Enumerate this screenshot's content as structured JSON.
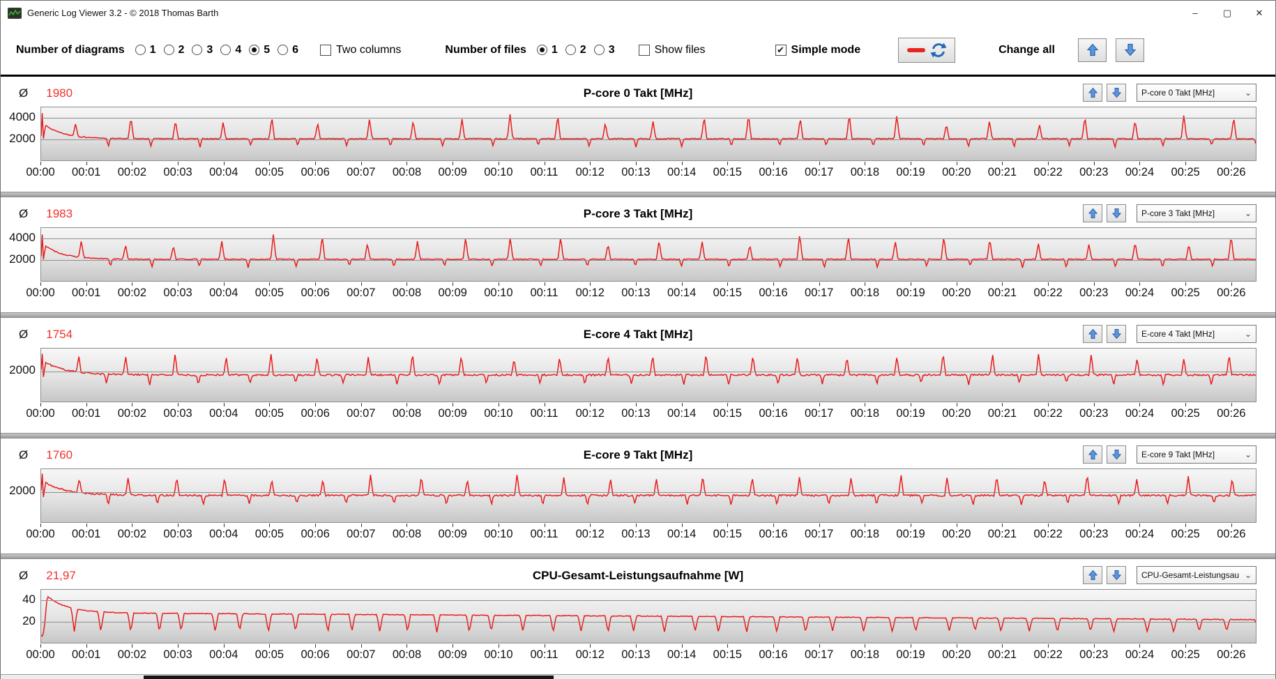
{
  "window": {
    "title": "Generic Log Viewer 3.2 - © 2018 Thomas Barth",
    "controls": {
      "minimize": "–",
      "maximize": "▢",
      "close": "✕"
    }
  },
  "toolbar": {
    "diagrams": {
      "label": "Number of diagrams",
      "options": [
        "1",
        "2",
        "3",
        "4",
        "5",
        "6"
      ],
      "selected": "5"
    },
    "two_columns": {
      "label": "Two columns",
      "checked": false
    },
    "files": {
      "label": "Number of files",
      "options": [
        "1",
        "2",
        "3"
      ],
      "selected": "1"
    },
    "show_files": {
      "label": "Show files",
      "checked": false
    },
    "simple_mode": {
      "label": "Simple mode",
      "checked": true
    },
    "change_all": {
      "label": "Change all"
    },
    "check_glyph": "✔",
    "dropdown_chevron": "⌄"
  },
  "colors": {
    "line_red": "#e81a1a",
    "avg_red": "#f2312a",
    "arrow_blue_fill": "#5b97dd",
    "arrow_blue_stroke": "#2b5fa8",
    "refresh_blue": "#1f66bb",
    "dash_red": "#e8251d",
    "gridline": "#8f8f8f"
  },
  "time_axis": {
    "tick_labels": [
      "00:00",
      "00:01",
      "00:02",
      "00:03",
      "00:04",
      "00:05",
      "00:06",
      "00:07",
      "00:08",
      "00:09",
      "00:10",
      "00:11",
      "00:12",
      "00:13",
      "00:14",
      "00:15",
      "00:16",
      "00:17",
      "00:18",
      "00:19",
      "00:20",
      "00:21",
      "00:22",
      "00:23",
      "00:24",
      "00:25",
      "00:26"
    ],
    "seconds_span": 1593
  },
  "panels": [
    {
      "avg_symbol": "Ø",
      "avg": "1980",
      "title": "P-core 0 Takt [MHz]",
      "dropdown": "P-core 0 Takt [MHz]",
      "type": "line",
      "ylim": [
        0,
        5000
      ],
      "yticks": [
        {
          "label": "4000",
          "value": 4000
        },
        {
          "label": "2000",
          "value": 2000
        }
      ],
      "waveform": {
        "seed": 7,
        "baseline": 2040,
        "noise": 42,
        "intro": [
          [
            0,
            2300
          ],
          [
            1.5,
            4450
          ],
          [
            3.5,
            1250
          ],
          [
            5,
            3500
          ]
        ],
        "decay_from": 3350,
        "decay_tau": 24,
        "decay_start": 5,
        "spike_start": 50,
        "spike_period": 63,
        "spike_min": 3400,
        "spike_max": 4400,
        "spike_width": 3.5,
        "dip_start": 84,
        "dip_period": 63,
        "dip_value": 1290,
        "dip_width": 2.6
      }
    },
    {
      "avg_symbol": "Ø",
      "avg": "1983",
      "title": "P-core 3 Takt [MHz]",
      "dropdown": "P-core 3 Takt [MHz]",
      "type": "line",
      "ylim": [
        0,
        5000
      ],
      "yticks": [
        {
          "label": "4000",
          "value": 4000
        },
        {
          "label": "2000",
          "value": 2000
        }
      ],
      "waveform": {
        "seed": 13,
        "baseline": 2045,
        "noise": 42,
        "intro": [
          [
            0,
            2300
          ],
          [
            1.5,
            4380
          ],
          [
            3.5,
            1260
          ],
          [
            5,
            3450
          ]
        ],
        "decay_from": 3350,
        "decay_tau": 24,
        "decay_start": 5,
        "spike_start": 52,
        "spike_period": 63,
        "spike_min": 3350,
        "spike_max": 4600,
        "spike_width": 3.5,
        "dip_start": 86,
        "dip_period": 63,
        "dip_value": 1300,
        "dip_width": 2.6
      }
    },
    {
      "avg_symbol": "Ø",
      "avg": "1754",
      "title": "E-core 4 Takt [MHz]",
      "dropdown": "E-core 4 Takt [MHz]",
      "type": "line",
      "ylim": [
        0,
        3500
      ],
      "yticks": [
        {
          "label": "2000",
          "value": 2000
        }
      ],
      "waveform": {
        "seed": 21,
        "baseline": 1755,
        "noise": 58,
        "intro": [
          [
            0,
            2100
          ],
          [
            1.5,
            3150
          ],
          [
            3.5,
            1120
          ],
          [
            5,
            2600
          ]
        ],
        "decay_from": 2600,
        "decay_tau": 30,
        "decay_start": 5,
        "spike_start": 50,
        "spike_period": 63,
        "spike_min": 2850,
        "spike_max": 3250,
        "spike_width": 3.2,
        "dip_start": 84,
        "dip_period": 63,
        "dip_value": 1130,
        "dip_width": 2.6
      }
    },
    {
      "avg_symbol": "Ø",
      "avg": "1760",
      "title": "E-core 9 Takt [MHz]",
      "dropdown": "E-core 9 Takt [MHz]",
      "type": "line",
      "ylim": [
        0,
        3500
      ],
      "yticks": [
        {
          "label": "2000",
          "value": 2000
        }
      ],
      "waveform": {
        "seed": 29,
        "baseline": 1765,
        "noise": 58,
        "intro": [
          [
            0,
            2100
          ],
          [
            1.5,
            3200
          ],
          [
            3.5,
            1150
          ],
          [
            5,
            2620
          ]
        ],
        "decay_from": 2620,
        "decay_tau": 30,
        "decay_start": 5,
        "spike_start": 53,
        "spike_period": 63,
        "spike_min": 2850,
        "spike_max": 3300,
        "spike_width": 3.2,
        "dip_start": 87,
        "dip_period": 63,
        "dip_value": 1140,
        "dip_width": 2.6
      }
    },
    {
      "avg_symbol": "Ø",
      "avg": "21,97",
      "title": "CPU-Gesamt-Leistungsaufnahme [W]",
      "dropdown": "CPU-Gesamt-Leistungsau",
      "type": "line",
      "ylim": [
        0,
        50
      ],
      "yticks": [
        {
          "label": "40",
          "value": 40
        },
        {
          "label": "20",
          "value": 20
        }
      ],
      "waveform": {
        "seed": 41,
        "base_start": 28.4,
        "base_end": 21.8,
        "noise": 0.35,
        "intro": [
          [
            0,
            7
          ],
          [
            2,
            6
          ],
          [
            4,
            13
          ],
          [
            8,
            44
          ]
        ],
        "decay_from": 44,
        "decay_tau": 26,
        "decay_start": 8,
        "spike_start": 0,
        "spike_period": 0,
        "spike_min": 0,
        "spike_max": 0,
        "spike_width": 0,
        "dip_start": 40,
        "dip_period": 37,
        "dip_value": 10.5,
        "dip_width": 4
      }
    }
  ]
}
